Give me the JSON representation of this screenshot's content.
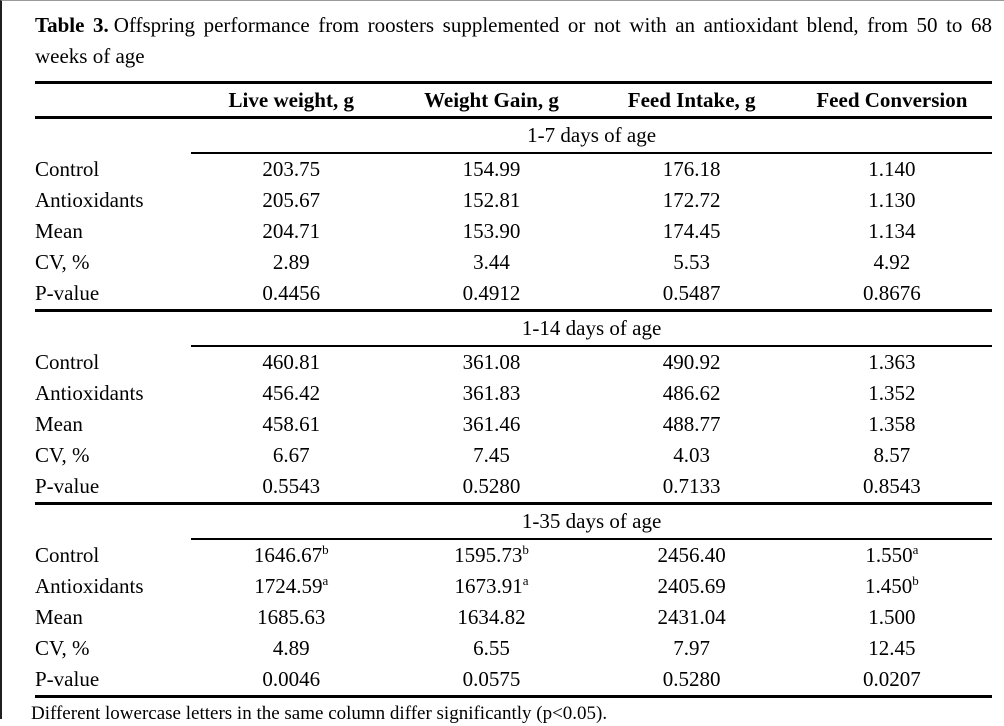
{
  "title": {
    "label": "Table 3.",
    "text": "Offspring performance from roosters supplemented or not with an antioxidant blend, from 50 to 68 weeks of age"
  },
  "columns": [
    "Live weight, g",
    "Weight Gain, g",
    "Feed Intake, g",
    "Feed Conversion"
  ],
  "sections": [
    {
      "header": "1-7 days of age",
      "rows": [
        {
          "label": "Control",
          "values": [
            {
              "v": "203.75"
            },
            {
              "v": "154.99"
            },
            {
              "v": "176.18"
            },
            {
              "v": "1.140"
            }
          ]
        },
        {
          "label": "Antioxidants",
          "values": [
            {
              "v": "205.67"
            },
            {
              "v": "152.81"
            },
            {
              "v": "172.72"
            },
            {
              "v": "1.130"
            }
          ]
        },
        {
          "label": "Mean",
          "values": [
            {
              "v": "204.71"
            },
            {
              "v": "153.90"
            },
            {
              "v": "174.45"
            },
            {
              "v": "1.134"
            }
          ]
        },
        {
          "label": "CV, %",
          "values": [
            {
              "v": "2.89"
            },
            {
              "v": "3.44"
            },
            {
              "v": "5.53"
            },
            {
              "v": "4.92"
            }
          ]
        },
        {
          "label": "P-value",
          "values": [
            {
              "v": "0.4456"
            },
            {
              "v": "0.4912"
            },
            {
              "v": "0.5487"
            },
            {
              "v": "0.8676"
            }
          ]
        }
      ]
    },
    {
      "header": "1-14 days of age",
      "rows": [
        {
          "label": "Control",
          "values": [
            {
              "v": "460.81"
            },
            {
              "v": "361.08"
            },
            {
              "v": "490.92"
            },
            {
              "v": "1.363"
            }
          ]
        },
        {
          "label": "Antioxidants",
          "values": [
            {
              "v": "456.42"
            },
            {
              "v": "361.83"
            },
            {
              "v": "486.62"
            },
            {
              "v": "1.352"
            }
          ]
        },
        {
          "label": "Mean",
          "values": [
            {
              "v": "458.61"
            },
            {
              "v": "361.46"
            },
            {
              "v": "488.77"
            },
            {
              "v": "1.358"
            }
          ]
        },
        {
          "label": "CV, %",
          "values": [
            {
              "v": "6.67"
            },
            {
              "v": "7.45"
            },
            {
              "v": "4.03"
            },
            {
              "v": "8.57"
            }
          ]
        },
        {
          "label": "P-value",
          "values": [
            {
              "v": "0.5543"
            },
            {
              "v": "0.5280"
            },
            {
              "v": "0.7133"
            },
            {
              "v": "0.8543"
            }
          ]
        }
      ]
    },
    {
      "header": "1-35 days of age",
      "rows": [
        {
          "label": "Control",
          "values": [
            {
              "v": "1646.67",
              "sup": "b"
            },
            {
              "v": "1595.73",
              "sup": "b"
            },
            {
              "v": "2456.40"
            },
            {
              "v": "1.550",
              "sup": "a"
            }
          ]
        },
        {
          "label": "Antioxidants",
          "values": [
            {
              "v": "1724.59",
              "sup": "a"
            },
            {
              "v": "1673.91",
              "sup": "a"
            },
            {
              "v": "2405.69"
            },
            {
              "v": "1.450",
              "sup": "b"
            }
          ]
        },
        {
          "label": "Mean",
          "values": [
            {
              "v": "1685.63"
            },
            {
              "v": "1634.82"
            },
            {
              "v": "2431.04"
            },
            {
              "v": "1.500"
            }
          ]
        },
        {
          "label": "CV, %",
          "values": [
            {
              "v": "4.89"
            },
            {
              "v": "6.55"
            },
            {
              "v": "7.97"
            },
            {
              "v": "12.45"
            }
          ]
        },
        {
          "label": "P-value",
          "values": [
            {
              "v": "0.0046"
            },
            {
              "v": "0.0575"
            },
            {
              "v": "0.5280"
            },
            {
              "v": "0.0207"
            }
          ]
        }
      ]
    }
  ],
  "footnote": "Different lowercase letters in the same column differ significantly (p<0.05)."
}
